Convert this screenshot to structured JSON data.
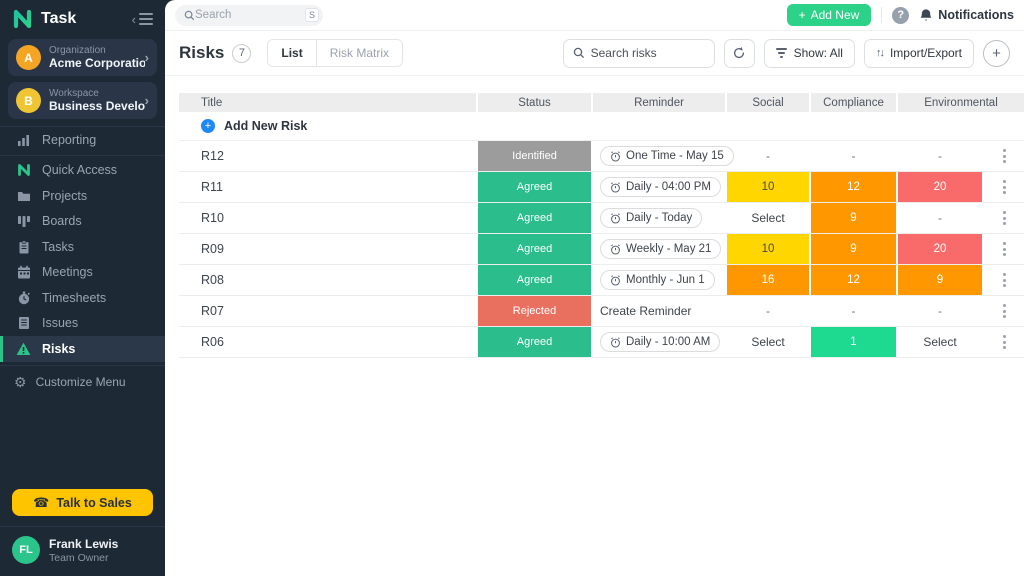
{
  "brand": {
    "name": "Task"
  },
  "sidebar": {
    "organization": {
      "label": "Organization",
      "name": "Acme Corporation",
      "initial": "A",
      "avatar_color": "#F5A524"
    },
    "workspace": {
      "label": "Workspace",
      "name": "Business Developm...",
      "initial": "B",
      "avatar_color": "#EFC533"
    },
    "items": [
      {
        "id": "reporting",
        "label": "Reporting",
        "icon": "bar-chart-icon",
        "active": false,
        "sep_after": true
      },
      {
        "id": "quick-access",
        "label": "Quick Access",
        "icon": "ntask-logo-icon",
        "active": false
      },
      {
        "id": "projects",
        "label": "Projects",
        "icon": "folder-icon",
        "active": false
      },
      {
        "id": "boards",
        "label": "Boards",
        "icon": "kanban-icon",
        "active": false
      },
      {
        "id": "tasks",
        "label": "Tasks",
        "icon": "clipboard-icon",
        "active": false
      },
      {
        "id": "meetings",
        "label": "Meetings",
        "icon": "calendar-icon",
        "active": false
      },
      {
        "id": "timesheets",
        "label": "Timesheets",
        "icon": "stopwatch-icon",
        "active": false
      },
      {
        "id": "issues",
        "label": "Issues",
        "icon": "document-icon",
        "active": false
      },
      {
        "id": "risks",
        "label": "Risks",
        "icon": "warning-triangle-icon",
        "active": true
      }
    ],
    "customize_label": "Customize Menu",
    "talk_to_sales_label": "Talk to Sales",
    "user": {
      "initials": "FL",
      "name": "Frank Lewis",
      "role": "Team Owner"
    }
  },
  "topbar": {
    "search_placeholder": "Search",
    "search_shortcut": "S",
    "add_new_label": "Add New",
    "help_label": "?",
    "notifications_label": "Notifications"
  },
  "page_header": {
    "title": "Risks",
    "count": "7",
    "tabs": [
      {
        "label": "List",
        "active": true
      },
      {
        "label": "Risk Matrix",
        "active": false
      }
    ],
    "search_placeholder": "Search risks",
    "show_label": "Show: All",
    "import_export_label": "Import/Export"
  },
  "table": {
    "columns": [
      "Title",
      "Status",
      "Reminder",
      "Social",
      "Compliance",
      "Environmental"
    ],
    "add_row_label": "Add New Risk",
    "rows": [
      {
        "title": "R12",
        "status": "Identified",
        "reminder": {
          "type": "pill",
          "label": "One Time - May 15"
        },
        "ratings": [
          {
            "text": "-"
          },
          {
            "text": "-"
          },
          {
            "text": "-"
          }
        ]
      },
      {
        "title": "R11",
        "status": "Agreed",
        "reminder": {
          "type": "pill",
          "label": "Daily - 04:00 PM"
        },
        "ratings": [
          {
            "text": "10",
            "bg": "yellow"
          },
          {
            "text": "12",
            "bg": "orange"
          },
          {
            "text": "20",
            "bg": "red"
          }
        ]
      },
      {
        "title": "R10",
        "status": "Agreed",
        "reminder": {
          "type": "pill",
          "label": "Daily - Today"
        },
        "ratings": [
          {
            "text": "Select"
          },
          {
            "text": "9",
            "bg": "orange"
          },
          {
            "text": "-"
          }
        ]
      },
      {
        "title": "R09",
        "status": "Agreed",
        "reminder": {
          "type": "pill",
          "label": "Weekly - May 21"
        },
        "ratings": [
          {
            "text": "10",
            "bg": "yellow"
          },
          {
            "text": "9",
            "bg": "orange"
          },
          {
            "text": "20",
            "bg": "red"
          }
        ]
      },
      {
        "title": "R08",
        "status": "Agreed",
        "reminder": {
          "type": "pill",
          "label": "Monthly - Jun 1"
        },
        "ratings": [
          {
            "text": "16",
            "bg": "orange"
          },
          {
            "text": "12",
            "bg": "orange"
          },
          {
            "text": "9",
            "bg": "orange"
          }
        ]
      },
      {
        "title": "R07",
        "status": "Rejected",
        "reminder": {
          "type": "plain",
          "label": "Create Reminder"
        },
        "ratings": [
          {
            "text": "-"
          },
          {
            "text": "-"
          },
          {
            "text": "-"
          }
        ]
      },
      {
        "title": "R06",
        "status": "Agreed",
        "reminder": {
          "type": "pill",
          "label": "Daily - 10:00 AM"
        },
        "ratings": [
          {
            "text": "Select"
          },
          {
            "text": "1",
            "bg": "green"
          },
          {
            "text": "Select"
          }
        ]
      }
    ]
  },
  "colors": {
    "accent_green": "#2BC48A",
    "statuses": {
      "Identified": "#9C9C9C",
      "Agreed": "#2BBE8C",
      "Rejected": "#E9705F"
    },
    "ratings": {
      "yellow": "#FFD600",
      "orange": "#FF9800",
      "red": "#F96B6B",
      "green": "#1ED990"
    },
    "rating_text_dark": "#4A4A4A",
    "rating_text_light": "#FFFFFF"
  }
}
